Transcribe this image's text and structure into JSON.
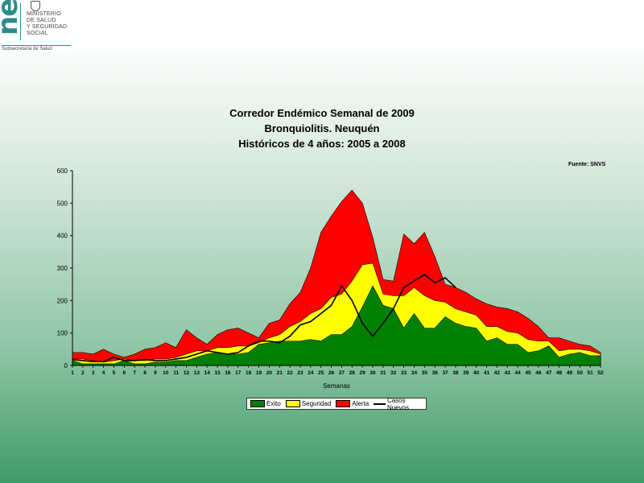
{
  "logo": {
    "brand": "neu",
    "ministry": "MINISTERIO\nDE SALUD\nY SEGURIDAD\nSOCIAL",
    "subtitle": "Subsecretaría de Salud"
  },
  "chart_data": {
    "type": "area",
    "title": [
      "Corredor Endémico Semanal de 2009",
      "Bronquiolitis.  Neuquén",
      "Históricos de 4 años: 2005 a 2008"
    ],
    "source": "Fuente: SNVS",
    "xlabel": "Semanas",
    "ylabel": "",
    "ylim": [
      0,
      600
    ],
    "yticks": [
      0,
      100,
      200,
      300,
      400,
      500,
      600
    ],
    "x": [
      1,
      2,
      3,
      4,
      5,
      6,
      7,
      8,
      9,
      10,
      11,
      12,
      13,
      14,
      15,
      16,
      17,
      18,
      19,
      20,
      21,
      22,
      23,
      24,
      25,
      26,
      27,
      28,
      29,
      30,
      31,
      32,
      33,
      34,
      35,
      36,
      37,
      38,
      39,
      40,
      41,
      42,
      43,
      44,
      45,
      46,
      47,
      48,
      49,
      50,
      51,
      52
    ],
    "legend_placement": "bottom",
    "series": [
      {
        "name": "Exito",
        "color": "#008000",
        "values": [
          15,
          5,
          5,
          5,
          5,
          15,
          5,
          5,
          10,
          10,
          15,
          15,
          25,
          35,
          40,
          35,
          35,
          40,
          65,
          70,
          75,
          75,
          75,
          80,
          75,
          95,
          95,
          120,
          180,
          245,
          185,
          175,
          115,
          160,
          115,
          115,
          150,
          130,
          120,
          115,
          75,
          85,
          65,
          65,
          40,
          45,
          60,
          25,
          35,
          40,
          30,
          30
        ]
      },
      {
        "name": "Seguridad",
        "color": "#ffff00",
        "values": [
          20,
          20,
          15,
          10,
          15,
          20,
          15,
          15,
          20,
          20,
          25,
          35,
          45,
          45,
          55,
          55,
          60,
          60,
          70,
          85,
          95,
          120,
          135,
          160,
          175,
          210,
          220,
          260,
          310,
          315,
          220,
          215,
          215,
          240,
          215,
          200,
          195,
          175,
          165,
          155,
          120,
          120,
          105,
          100,
          80,
          75,
          75,
          45,
          50,
          50,
          45,
          35
        ]
      },
      {
        "name": "Alerta",
        "color": "#ff0000",
        "values": [
          40,
          40,
          35,
          50,
          35,
          25,
          35,
          50,
          55,
          70,
          55,
          110,
          85,
          65,
          95,
          110,
          115,
          100,
          85,
          130,
          140,
          190,
          225,
          300,
          410,
          460,
          505,
          540,
          500,
          395,
          265,
          260,
          405,
          375,
          410,
          335,
          250,
          240,
          225,
          205,
          190,
          180,
          175,
          165,
          145,
          120,
          85,
          85,
          75,
          65,
          60,
          40
        ]
      }
    ],
    "line": {
      "name": "Casos Nuevos",
      "color": "#000000",
      "values": [
        18,
        15,
        12,
        12,
        25,
        15,
        15,
        18,
        15,
        15,
        20,
        25,
        35,
        45,
        40,
        35,
        40,
        60,
        75,
        75,
        70,
        90,
        125,
        135,
        160,
        185,
        245,
        200,
        130,
        90,
        130,
        175,
        240,
        260,
        280,
        255,
        270,
        240,
        null,
        null,
        null,
        null,
        null,
        null,
        null,
        null,
        null,
        null,
        null,
        null,
        null,
        null
      ]
    }
  }
}
